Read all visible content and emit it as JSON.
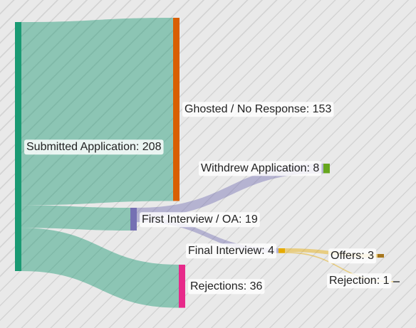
{
  "diagram": {
    "type": "sankey",
    "nodes": [
      {
        "id": "submitted",
        "label": "Submitted Application: 208",
        "value": 208,
        "color": "#1a9a73"
      },
      {
        "id": "ghosted",
        "label": "Ghosted / No Response: 153",
        "value": 153,
        "color": "#d95f02"
      },
      {
        "id": "first",
        "label": "First Interview / OA: 19",
        "value": 19,
        "color": "#7570b3"
      },
      {
        "id": "rejections",
        "label": "Rejections: 36",
        "value": 36,
        "color": "#e7298a"
      },
      {
        "id": "withdrew",
        "label": "Withdrew Application: 8",
        "value": 8,
        "color": "#66a61e"
      },
      {
        "id": "final",
        "label": "Final Interview: 4",
        "value": 4,
        "color": "#e6ab02"
      },
      {
        "id": "offers",
        "label": "Offers: 3",
        "value": 3,
        "color": "#a6761d"
      },
      {
        "id": "rejection1",
        "label": "Rejection: 1",
        "value": 1,
        "color": "#666666"
      }
    ],
    "links": [
      {
        "source": "submitted",
        "target": "ghosted",
        "value": 153
      },
      {
        "source": "submitted",
        "target": "first",
        "value": 19
      },
      {
        "source": "submitted",
        "target": "rejections",
        "value": 36
      },
      {
        "source": "first",
        "target": "withdrew",
        "value": 8
      },
      {
        "source": "first",
        "target": "final",
        "value": 4
      },
      {
        "source": "final",
        "target": "offers",
        "value": 3
      },
      {
        "source": "final",
        "target": "rejection1",
        "value": 1
      }
    ]
  }
}
